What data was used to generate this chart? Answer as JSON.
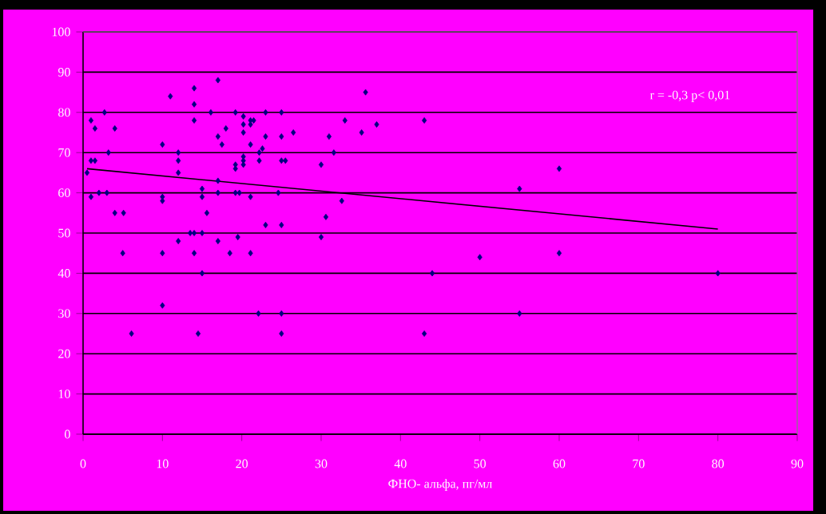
{
  "chart_data": {
    "type": "scatter",
    "xlabel": "ФНО- альфа, пг/мл",
    "annotations": [
      "r = -0,3  p< 0,01"
    ],
    "xlim": [
      0,
      90
    ],
    "xticks": [
      0,
      10,
      20,
      30,
      40,
      50,
      60,
      70,
      80,
      90
    ],
    "ylim": [
      0,
      100
    ],
    "yticks": [
      0,
      10,
      20,
      30,
      40,
      50,
      60,
      70,
      80,
      90,
      100
    ],
    "grid": "y",
    "series": [
      {
        "marker": "diamond",
        "color": "#000080",
        "x": [
          0.5,
          1,
          1,
          1.5,
          1,
          1.5,
          2,
          2.7,
          3,
          3.2,
          4,
          4,
          5.1,
          10,
          10,
          10,
          11,
          12,
          12,
          12,
          14,
          14,
          14,
          14,
          13.5,
          15,
          15,
          15,
          15.6,
          12,
          16.1,
          17,
          17,
          17.5,
          18,
          17,
          17,
          17,
          19.2,
          19.2,
          19.2,
          19.2,
          19.5,
          20.2,
          20.2,
          20.2,
          20.2,
          20.2,
          20.2,
          19.7,
          21.1,
          21.5,
          21.1,
          21.1,
          21.1,
          22.2,
          22.2,
          22.6,
          23,
          23,
          23,
          24.6,
          25,
          25,
          25,
          25.5,
          25,
          26.5,
          30,
          30,
          30.6,
          31,
          31.6,
          32.6,
          33,
          35.1,
          35.6,
          37,
          43,
          60,
          55,
          5,
          10,
          14,
          18.5,
          21.1,
          15,
          10,
          22.1,
          25,
          6.1,
          14.5,
          25,
          44,
          50,
          60,
          80,
          55,
          43
        ],
        "values": [
          65,
          78,
          68,
          68,
          59,
          76,
          60,
          80,
          60,
          70,
          76,
          55,
          55,
          72,
          59,
          58,
          84,
          70,
          68,
          65,
          86,
          82,
          78,
          50,
          50,
          61,
          59,
          50,
          55,
          48,
          80,
          88,
          74,
          72,
          76,
          63,
          60,
          48,
          80,
          67,
          66,
          60,
          49,
          79,
          77,
          75,
          69,
          68,
          67,
          60,
          78,
          78,
          77,
          72,
          59,
          68,
          70,
          71,
          80,
          74,
          52,
          60,
          80,
          74,
          68,
          68,
          52,
          75,
          67,
          49,
          54,
          74,
          70,
          58,
          78,
          75,
          85,
          77,
          78,
          66,
          61,
          45,
          45,
          45,
          45,
          45,
          40,
          32,
          30,
          30,
          25,
          25,
          25,
          40,
          44,
          45,
          40,
          30,
          25
        ]
      },
      {
        "type": "line",
        "marker": "none",
        "color": "#000000",
        "x": [
          0.5,
          80
        ],
        "values": [
          66,
          51
        ]
      }
    ]
  }
}
